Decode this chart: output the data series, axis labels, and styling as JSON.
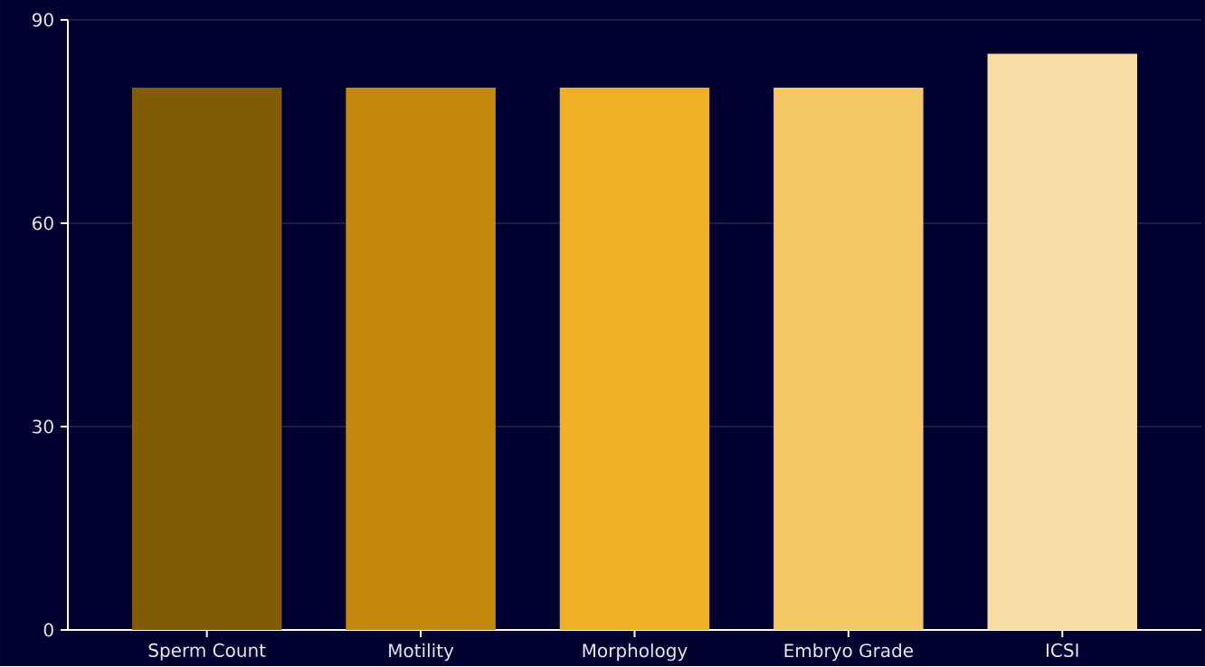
{
  "chart_data": {
    "type": "bar",
    "categories": [
      "Sperm Count",
      "Motility",
      "Morphology",
      "Embryo Grade",
      "ICSI"
    ],
    "values": [
      80,
      80,
      80,
      80,
      85
    ],
    "colors": [
      "#825b07",
      "#c4890d",
      "#f0b025",
      "#f5c865",
      "#f7dda3"
    ],
    "ylim": [
      0,
      90
    ],
    "yticks": [
      0,
      30,
      60,
      90
    ],
    "grid": "y"
  }
}
